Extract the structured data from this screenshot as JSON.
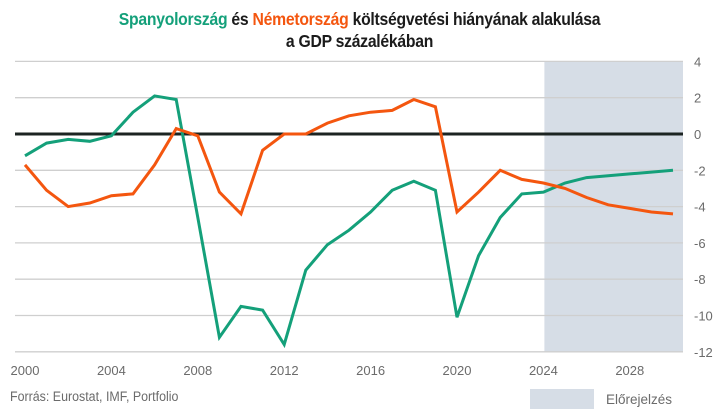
{
  "title": {
    "spain": "Spanyolország",
    "connector": " és ",
    "germany": "Németország",
    "rest_line1": " költségvetési hiányának alakulása",
    "line2": "a GDP százalékában"
  },
  "source": "Forrás: Eurostat, IMF, Portfolio",
  "legend": {
    "forecast_label": "Előrejelzés"
  },
  "colors": {
    "spain": "#14a07a",
    "germany": "#f4560f",
    "zero_line": "#1c2422",
    "grid": "#cfcfcf",
    "forecast_shade": "#d6dde6",
    "tick_text": "#6b6b6b"
  },
  "chart_data": {
    "type": "line",
    "title": "Spanyolország és Németország költségvetési hiányának alakulása a GDP százalékában",
    "xlabel": "",
    "ylabel": "",
    "x": [
      2000,
      2001,
      2002,
      2003,
      2004,
      2005,
      2006,
      2007,
      2008,
      2009,
      2010,
      2011,
      2012,
      2013,
      2014,
      2015,
      2016,
      2017,
      2018,
      2019,
      2020,
      2021,
      2022,
      2023,
      2024,
      2025,
      2026,
      2027,
      2028,
      2029,
      2030
    ],
    "xlim": [
      2000,
      2030.5
    ],
    "ylim": [
      -12,
      4
    ],
    "x_ticks": [
      "2000",
      "2004",
      "2008",
      "2012",
      "2016",
      "2020",
      "2024",
      "2028"
    ],
    "x_tick_values": [
      2000,
      2004,
      2008,
      2012,
      2016,
      2020,
      2024,
      2028
    ],
    "y_ticks": [
      "4",
      "2",
      "0",
      "-2",
      "-4",
      "-6",
      "-8",
      "-10",
      "-12"
    ],
    "y_tick_values": [
      4,
      2,
      0,
      -2,
      -4,
      -6,
      -8,
      -10,
      -12
    ],
    "y_axis_side": "right",
    "grid": "horizontal",
    "reference_line": 0,
    "forecast_region": {
      "from": 2024,
      "to": 2030.5,
      "label": "Előrejelzés"
    },
    "series": [
      {
        "name": "Spanyolország",
        "color": "#14a07a",
        "values": [
          -1.2,
          -0.5,
          -0.3,
          -0.4,
          -0.1,
          1.2,
          2.1,
          1.9,
          -4.6,
          -11.2,
          -9.5,
          -9.7,
          -11.6,
          -7.5,
          -6.1,
          -5.3,
          -4.3,
          -3.1,
          -2.6,
          -3.1,
          -10.1,
          -6.7,
          -4.6,
          -3.3,
          -3.2,
          -2.7,
          -2.4,
          -2.3,
          -2.2,
          -2.1,
          -2.0
        ]
      },
      {
        "name": "Németország",
        "color": "#f4560f",
        "values": [
          -1.7,
          -3.1,
          -4.0,
          -3.8,
          -3.4,
          -3.3,
          -1.7,
          0.3,
          -0.1,
          -3.2,
          -4.4,
          -0.9,
          0.0,
          0.0,
          0.6,
          1.0,
          1.2,
          1.3,
          1.9,
          1.5,
          -4.3,
          -3.2,
          -2.0,
          -2.5,
          -2.7,
          -3.0,
          -3.5,
          -3.9,
          -4.1,
          -4.3,
          -4.4
        ]
      }
    ],
    "legend": "bottom-right",
    "source": "Forrás: Eurostat, IMF, Portfolio"
  }
}
